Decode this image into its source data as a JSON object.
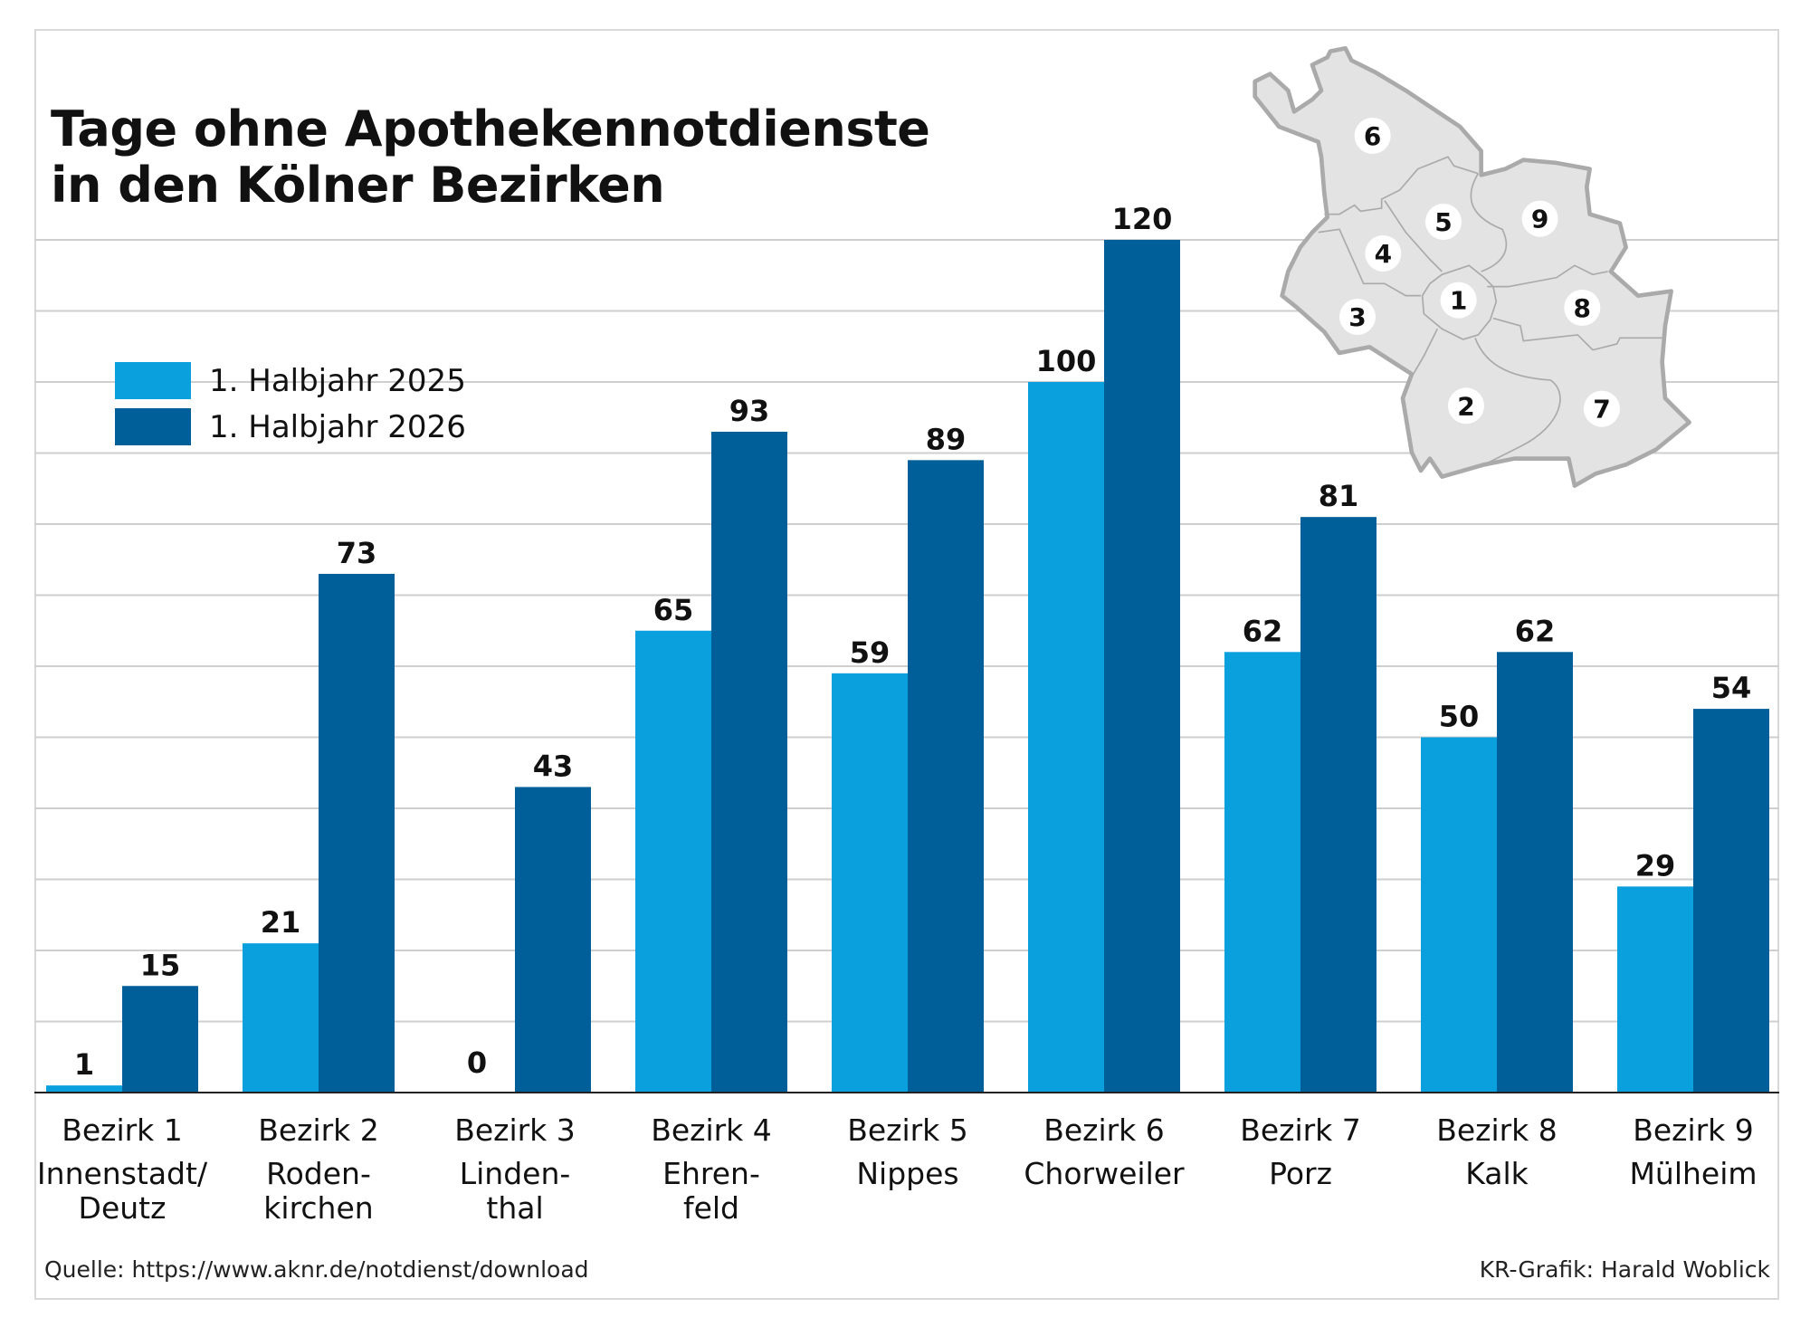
{
  "chart_data": {
    "type": "bar",
    "title": "Tage ohne Apothekennotdienste\nin den Kölner Bezirken",
    "title_lines": [
      "Tage ohne Apothekennotdienste",
      "in den Kölner Bezirken"
    ],
    "categories": [
      {
        "label": "Bezirk 1",
        "sub": [
          "Innenstadt/",
          "Deutz"
        ]
      },
      {
        "label": "Bezirk 2",
        "sub": [
          "Roden-",
          "kirchen"
        ]
      },
      {
        "label": "Bezirk 3",
        "sub": [
          "Linden-",
          "thal"
        ]
      },
      {
        "label": "Bezirk 4",
        "sub": [
          "Ehren-",
          "feld"
        ]
      },
      {
        "label": "Bezirk 5",
        "sub": [
          "Nippes"
        ]
      },
      {
        "label": "Bezirk 6",
        "sub": [
          "Chorweiler"
        ]
      },
      {
        "label": "Bezirk 7",
        "sub": [
          "Porz"
        ]
      },
      {
        "label": "Bezirk 8",
        "sub": [
          "Kalk"
        ]
      },
      {
        "label": "Bezirk 9",
        "sub": [
          "Mülheim"
        ]
      }
    ],
    "series": [
      {
        "name": "1. Halbjahr 2025",
        "color": "#0a9fdd",
        "values": [
          1,
          21,
          0,
          65,
          59,
          100,
          62,
          50,
          29
        ]
      },
      {
        "name": "1. Halbjahr 2026",
        "color": "#005e98",
        "values": [
          15,
          73,
          43,
          93,
          89,
          120,
          81,
          62,
          54
        ]
      }
    ],
    "xlabel": "",
    "ylabel": "",
    "ylim": [
      0,
      120
    ],
    "grid": true,
    "grid_step": 10,
    "legend_position": "top-left",
    "data_labels": true
  },
  "map": {
    "district_labels": [
      "1",
      "2",
      "3",
      "4",
      "5",
      "6",
      "7",
      "8",
      "9"
    ],
    "fill": "#e3e3e3",
    "stroke": "#aaaaaa"
  },
  "footer": {
    "source": "Quelle: https://www.aknr.de/notdienst/download",
    "credit": "KR-Grafik: Harald Woblick"
  }
}
